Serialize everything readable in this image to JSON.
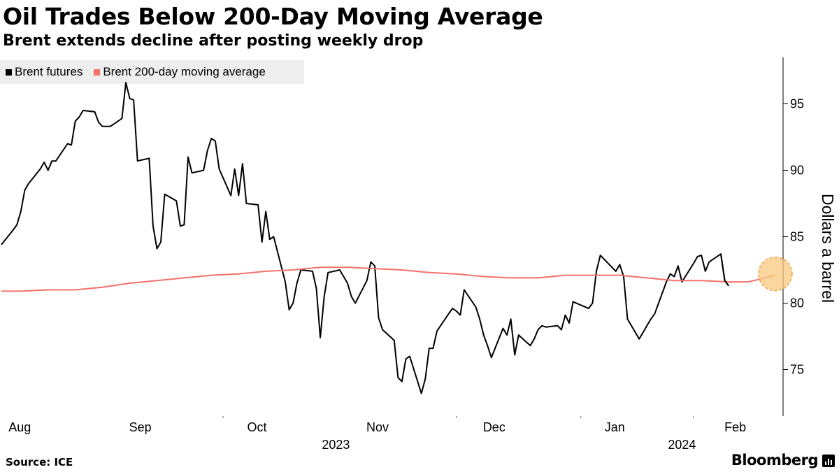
{
  "title": "Oil Trades Below 200-Day Moving Average",
  "subtitle": "Brent extends decline after posting weekly drop",
  "source": "Source: ICE",
  "brand": "Bloomberg",
  "colors": {
    "brent": "#000000",
    "ma": "#f4716a",
    "highlight": "#f9c87e",
    "highlight_stroke": "#f0a040"
  },
  "chart_data": {
    "type": "line",
    "title": "Oil Trades Below 200-Day Moving Average",
    "subtitle": "Brent extends decline after posting weekly drop",
    "ylabel": "Dollars a barrel",
    "ylim": [
      71.5,
      98.5
    ],
    "yticks": [
      75,
      80,
      85,
      90,
      95
    ],
    "x_range": [
      "2023-07-28",
      "2024-02-14"
    ],
    "month_ticks": [
      {
        "label": "Aug",
        "date": "2023-08-01"
      },
      {
        "label": "Sep",
        "date": "2023-09-01"
      },
      {
        "label": "Oct",
        "date": "2023-10-01"
      },
      {
        "label": "Nov",
        "date": "2023-11-01"
      },
      {
        "label": "Dec",
        "date": "2023-12-01"
      },
      {
        "label": "Jan",
        "date": "2024-01-01"
      },
      {
        "label": "Feb",
        "date": "2024-02-01"
      }
    ],
    "year_labels": [
      {
        "label": "2023",
        "date": "2023-10-22"
      },
      {
        "label": "2024",
        "date": "2024-01-19"
      }
    ],
    "year_separators": [
      "2023-09-23",
      "2023-11-22",
      "2023-12-24",
      "2024-01-22"
    ],
    "legend_position": "top-left",
    "grid": false,
    "series": [
      {
        "name": "Brent futures",
        "color": "#000000",
        "points": [
          [
            "2023-07-28",
            84.4
          ],
          [
            "2023-07-31",
            85.5
          ],
          [
            "2023-08-01",
            85.9
          ],
          [
            "2023-08-02",
            86.9
          ],
          [
            "2023-08-03",
            88.5
          ],
          [
            "2023-08-04",
            89.0
          ],
          [
            "2023-08-07",
            90.1
          ],
          [
            "2023-08-08",
            90.6
          ],
          [
            "2023-08-09",
            90.0
          ],
          [
            "2023-08-10",
            90.7
          ],
          [
            "2023-08-11",
            90.7
          ],
          [
            "2023-08-14",
            92.0
          ],
          [
            "2023-08-15",
            91.9
          ],
          [
            "2023-08-16",
            93.7
          ],
          [
            "2023-08-17",
            94.0
          ],
          [
            "2023-08-18",
            94.5
          ],
          [
            "2023-08-21",
            94.4
          ],
          [
            "2023-08-22",
            93.6
          ],
          [
            "2023-08-23",
            93.3
          ],
          [
            "2023-08-24",
            93.3
          ],
          [
            "2023-08-25",
            93.3
          ],
          [
            "2023-08-28",
            93.9
          ],
          [
            "2023-08-29",
            96.6
          ],
          [
            "2023-08-30",
            95.4
          ],
          [
            "2023-08-31",
            95.3
          ],
          [
            "2023-09-01",
            90.7
          ],
          [
            "2023-09-04",
            90.9
          ],
          [
            "2023-09-05",
            85.8
          ],
          [
            "2023-09-06",
            84.1
          ],
          [
            "2023-09-07",
            84.6
          ],
          [
            "2023-09-08",
            88.2
          ],
          [
            "2023-09-11",
            87.7
          ],
          [
            "2023-09-12",
            85.8
          ],
          [
            "2023-09-13",
            85.9
          ],
          [
            "2023-09-14",
            91.0
          ],
          [
            "2023-09-15",
            89.8
          ],
          [
            "2023-09-18",
            90.0
          ],
          [
            "2023-09-19",
            91.5
          ],
          [
            "2023-09-20",
            92.4
          ],
          [
            "2023-09-21",
            92.2
          ],
          [
            "2023-09-22",
            90.1
          ],
          [
            "2023-09-25",
            88.1
          ],
          [
            "2023-09-26",
            90.1
          ],
          [
            "2023-09-27",
            88.1
          ],
          [
            "2023-09-28",
            90.5
          ],
          [
            "2023-09-29",
            87.5
          ],
          [
            "2023-10-02",
            87.4
          ],
          [
            "2023-10-03",
            84.6
          ],
          [
            "2023-10-04",
            86.9
          ],
          [
            "2023-10-05",
            84.8
          ],
          [
            "2023-10-06",
            85.0
          ],
          [
            "2023-10-09",
            81.6
          ],
          [
            "2023-10-10",
            79.5
          ],
          [
            "2023-10-11",
            80.0
          ],
          [
            "2023-10-12",
            81.5
          ],
          [
            "2023-10-13",
            82.5
          ],
          [
            "2023-10-16",
            82.4
          ],
          [
            "2023-10-17",
            81.1
          ],
          [
            "2023-10-18",
            77.4
          ],
          [
            "2023-10-19",
            80.5
          ],
          [
            "2023-10-20",
            82.3
          ],
          [
            "2023-10-23",
            82.5
          ],
          [
            "2023-10-24",
            82.0
          ],
          [
            "2023-10-25",
            81.5
          ],
          [
            "2023-10-26",
            80.5
          ],
          [
            "2023-10-27",
            80.0
          ],
          [
            "2023-10-30",
            81.7
          ],
          [
            "2023-10-31",
            83.1
          ],
          [
            "2023-11-01",
            82.8
          ],
          [
            "2023-11-02",
            78.9
          ],
          [
            "2023-11-03",
            78.0
          ],
          [
            "2023-11-06",
            77.2
          ],
          [
            "2023-11-07",
            74.4
          ],
          [
            "2023-11-08",
            74.1
          ],
          [
            "2023-11-09",
            75.8
          ],
          [
            "2023-11-10",
            76.0
          ],
          [
            "2023-11-13",
            73.2
          ],
          [
            "2023-11-14",
            74.3
          ],
          [
            "2023-11-15",
            76.6
          ],
          [
            "2023-11-16",
            76.6
          ],
          [
            "2023-11-17",
            77.9
          ],
          [
            "2023-11-20",
            79.2
          ],
          [
            "2023-11-21",
            79.6
          ],
          [
            "2023-11-22",
            79.4
          ],
          [
            "2023-11-23",
            79.1
          ],
          [
            "2023-11-24",
            81.0
          ],
          [
            "2023-11-27",
            79.7
          ],
          [
            "2023-11-28",
            78.8
          ],
          [
            "2023-11-29",
            77.6
          ],
          [
            "2023-11-30",
            76.8
          ],
          [
            "2023-12-01",
            75.9
          ],
          [
            "2023-12-04",
            78.1
          ],
          [
            "2023-12-05",
            77.6
          ],
          [
            "2023-12-06",
            78.8
          ],
          [
            "2023-12-07",
            76.1
          ],
          [
            "2023-12-08",
            77.6
          ],
          [
            "2023-12-11",
            76.8
          ],
          [
            "2023-12-12",
            77.3
          ],
          [
            "2023-12-13",
            78.0
          ],
          [
            "2023-12-14",
            78.3
          ],
          [
            "2023-12-15",
            78.2
          ],
          [
            "2023-12-18",
            78.3
          ],
          [
            "2023-12-19",
            78.0
          ],
          [
            "2023-12-20",
            79.1
          ],
          [
            "2023-12-21",
            78.5
          ],
          [
            "2023-12-22",
            80.1
          ],
          [
            "2023-12-26",
            79.6
          ],
          [
            "2023-12-27",
            80.0
          ],
          [
            "2023-12-28",
            82.4
          ],
          [
            "2023-12-29",
            83.6
          ],
          [
            "2024-01-02",
            82.4
          ],
          [
            "2024-01-03",
            82.9
          ],
          [
            "2024-01-04",
            82.0
          ],
          [
            "2024-01-05",
            78.8
          ],
          [
            "2024-01-08",
            77.3
          ],
          [
            "2024-01-09",
            77.8
          ],
          [
            "2024-01-10",
            78.3
          ],
          [
            "2024-01-11",
            78.8
          ],
          [
            "2024-01-12",
            79.2
          ],
          [
            "2024-01-15",
            81.6
          ],
          [
            "2024-01-16",
            82.2
          ],
          [
            "2024-01-17",
            82.0
          ],
          [
            "2024-01-18",
            82.8
          ],
          [
            "2024-01-19",
            81.6
          ],
          [
            "2024-01-22",
            83.0
          ],
          [
            "2024-01-23",
            83.5
          ],
          [
            "2024-01-24",
            83.6
          ],
          [
            "2024-01-25",
            82.4
          ],
          [
            "2024-01-26",
            83.1
          ],
          [
            "2024-01-29",
            83.7
          ],
          [
            "2024-01-30",
            81.7
          ],
          [
            "2024-01-31",
            81.3
          ]
        ]
      },
      {
        "name": "Brent 200-day moving average",
        "color": "#f4716a",
        "points": [
          [
            "2023-07-28",
            80.9
          ],
          [
            "2023-08-02",
            80.9
          ],
          [
            "2023-08-09",
            81.0
          ],
          [
            "2023-08-16",
            81.0
          ],
          [
            "2023-08-23",
            81.2
          ],
          [
            "2023-08-30",
            81.5
          ],
          [
            "2023-09-06",
            81.7
          ],
          [
            "2023-09-13",
            81.9
          ],
          [
            "2023-09-20",
            82.1
          ],
          [
            "2023-09-27",
            82.2
          ],
          [
            "2023-10-04",
            82.4
          ],
          [
            "2023-10-11",
            82.5
          ],
          [
            "2023-10-18",
            82.7
          ],
          [
            "2023-10-25",
            82.7
          ],
          [
            "2023-11-01",
            82.6
          ],
          [
            "2023-11-08",
            82.5
          ],
          [
            "2023-11-15",
            82.3
          ],
          [
            "2023-11-22",
            82.2
          ],
          [
            "2023-11-29",
            82.0
          ],
          [
            "2023-12-06",
            81.9
          ],
          [
            "2023-12-13",
            81.9
          ],
          [
            "2023-12-20",
            82.1
          ],
          [
            "2023-12-27",
            82.1
          ],
          [
            "2024-01-03",
            82.1
          ],
          [
            "2024-01-10",
            81.9
          ],
          [
            "2024-01-17",
            81.7
          ],
          [
            "2024-01-24",
            81.7
          ],
          [
            "2024-01-31",
            81.6
          ],
          [
            "2024-02-05",
            81.6
          ],
          [
            "2024-02-08",
            81.8
          ],
          [
            "2024-02-12",
            82.1
          ]
        ]
      }
    ],
    "highlight": {
      "date": "2024-02-12",
      "value": 82.2
    }
  }
}
